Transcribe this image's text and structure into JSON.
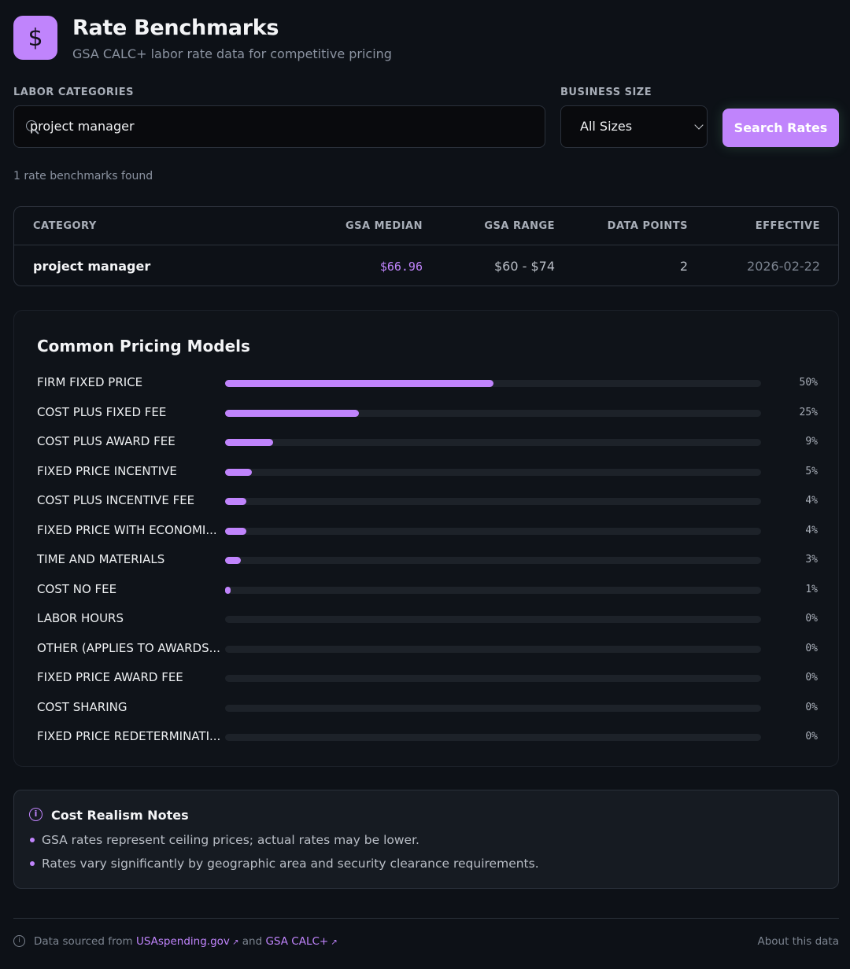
{
  "header": {
    "logo_glyph": "$",
    "title": "Rate Benchmarks",
    "subtitle": "GSA CALC+ labor rate data for competitive pricing"
  },
  "search": {
    "labor_label": "LABOR CATEGORIES",
    "labor_value": "project manager",
    "size_label": "BUSINESS SIZE",
    "size_value": "All Sizes",
    "button_label": "Search Rates",
    "result_count": "1 rate benchmarks found"
  },
  "table": {
    "headers": [
      "CATEGORY",
      "GSA MEDIAN",
      "GSA RANGE",
      "DATA POINTS",
      "EFFECTIVE"
    ],
    "rows": [
      {
        "category": "project manager",
        "median": "$66.96",
        "range": "$60 - $74",
        "points": "2",
        "effective": "2026-02-22"
      }
    ]
  },
  "pricing": {
    "title": "Common Pricing Models",
    "models": [
      {
        "label": "FIRM FIXED PRICE",
        "pct": "50%",
        "value": 50
      },
      {
        "label": "COST PLUS FIXED FEE",
        "pct": "25%",
        "value": 25
      },
      {
        "label": "COST PLUS AWARD FEE",
        "pct": "9%",
        "value": 9
      },
      {
        "label": "FIXED PRICE INCENTIVE",
        "pct": "5%",
        "value": 5
      },
      {
        "label": "COST PLUS INCENTIVE FEE",
        "pct": "4%",
        "value": 4
      },
      {
        "label": "FIXED PRICE WITH ECONOMI...",
        "pct": "4%",
        "value": 4
      },
      {
        "label": "TIME AND MATERIALS",
        "pct": "3%",
        "value": 3
      },
      {
        "label": "COST NO FEE",
        "pct": "1%",
        "value": 1
      },
      {
        "label": "LABOR HOURS",
        "pct": "0%",
        "value": 0
      },
      {
        "label": "OTHER (APPLIES TO AWARDS...",
        "pct": "0%",
        "value": 0
      },
      {
        "label": "FIXED PRICE AWARD FEE",
        "pct": "0%",
        "value": 0
      },
      {
        "label": "COST SHARING",
        "pct": "0%",
        "value": 0
      },
      {
        "label": "FIXED PRICE REDETERMINATI...",
        "pct": "0%",
        "value": 0
      }
    ]
  },
  "notes": {
    "title": "Cost Realism Notes",
    "items": [
      "GSA rates represent ceiling prices; actual rates may be lower.",
      "Rates vary significantly by geographic area and security clearance requirements."
    ]
  },
  "footer": {
    "prefix": "Data sourced from",
    "link1": "USAspending.gov",
    "and": "and",
    "link2": "GSA CALC+",
    "about": "About this data"
  },
  "colors": {
    "accent": "#c084fc",
    "background": "#0d1117",
    "card": "#0f1319",
    "track": "#1d2229"
  }
}
